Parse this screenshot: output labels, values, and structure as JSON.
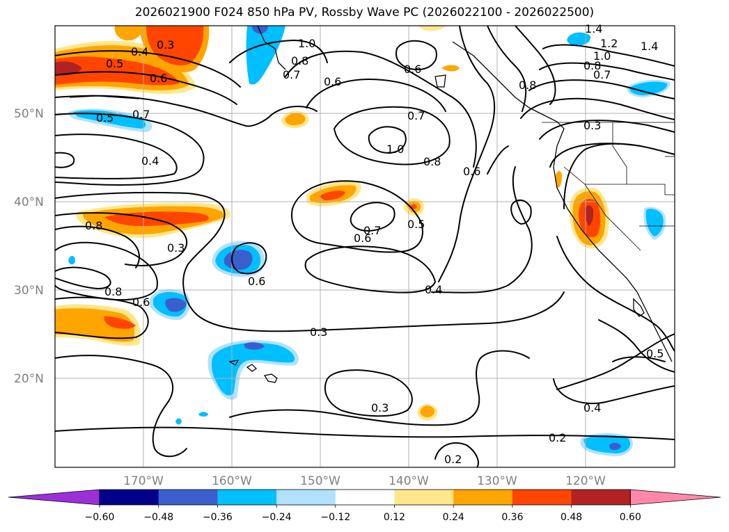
{
  "title": "2026021900 F024 850 hPa PV, Rossby Wave PC (2026022100 - 2026022500)",
  "lat_labels": [
    "50°N",
    "40°N",
    "30°N",
    "20°N"
  ],
  "lon_labels": [
    "170°W",
    "160°W",
    "150°W",
    "140°W",
    "130°W",
    "120°W"
  ],
  "colorbar": {
    "ticks": [
      "−0.60",
      "−0.48",
      "−0.36",
      "−0.24",
      "−0.12",
      "0.12",
      "0.24",
      "0.36",
      "0.48",
      "0.60"
    ],
    "colors": [
      "#9b30d9",
      "#00008b",
      "#3a5fcd",
      "#00bfff",
      "#b0e2ff",
      "#ffffff",
      "#ffe78a",
      "#ffa500",
      "#ff4500",
      "#b22222",
      "#ff88aa"
    ]
  },
  "contour_labels": [
    "0.3",
    "0.4",
    "0.5",
    "0.6",
    "0.7",
    "0.8",
    "1.0",
    "1.2",
    "1.4",
    "0.2"
  ],
  "shading_colors": {
    "light_yellow": "#ffe78a",
    "orange": "#ffa500",
    "red_orange": "#ff4500",
    "dark_red": "#b22222",
    "light_blue": "#b0e2ff",
    "cyan": "#00bfff",
    "royal_blue": "#3a5fcd"
  }
}
